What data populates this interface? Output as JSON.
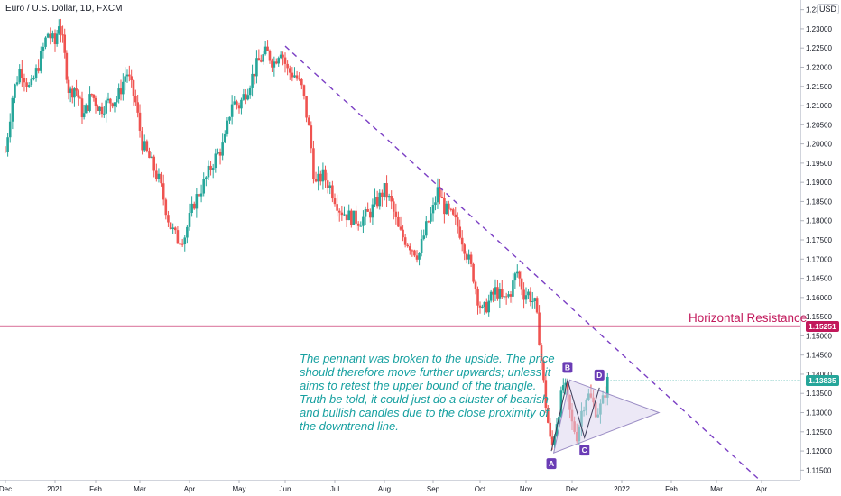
{
  "chart_data": {
    "type": "candlestick",
    "title": "Euro / U.S. Dollar, 1D, FXCM",
    "currency": "USD",
    "y_ticks": [
      "1.23500",
      "1.23000",
      "1.22500",
      "1.22000",
      "1.21500",
      "1.21000",
      "1.20500",
      "1.20000",
      "1.19500",
      "1.19000",
      "1.18500",
      "1.18000",
      "1.17500",
      "1.17000",
      "1.16500",
      "1.16000",
      "1.15500",
      "1.15000",
      "1.14500",
      "1.14000",
      "1.13500",
      "1.13000",
      "1.12500",
      "1.12000",
      "1.11500"
    ],
    "y_tick_values": [
      1.235,
      1.23,
      1.225,
      1.22,
      1.215,
      1.21,
      1.205,
      1.2,
      1.195,
      1.19,
      1.185,
      1.18,
      1.175,
      1.17,
      1.165,
      1.16,
      1.155,
      1.15,
      1.145,
      1.14,
      1.135,
      1.13,
      1.125,
      1.12,
      1.115
    ],
    "ylim": [
      1.1125,
      1.2375
    ],
    "x_ticks": [
      "Dec",
      "2021",
      "Feb",
      "Mar",
      "Apr",
      "May",
      "Jun",
      "Jul",
      "Aug",
      "Sep",
      "Oct",
      "Nov",
      "Dec",
      "2022",
      "Feb",
      "Mar",
      "Apr"
    ],
    "x_tick_months": [
      0,
      1,
      2,
      3,
      4,
      5,
      6,
      7,
      8,
      9,
      10,
      11,
      12,
      13,
      14,
      15,
      16
    ],
    "price_path": [
      [
        0.0,
        1.198
      ],
      [
        0.15,
        1.213
      ],
      [
        0.3,
        1.22
      ],
      [
        0.5,
        1.214
      ],
      [
        0.7,
        1.222
      ],
      [
        0.85,
        1.229
      ],
      [
        1.0,
        1.226
      ],
      [
        1.1,
        1.232
      ],
      [
        1.2,
        1.226
      ],
      [
        1.35,
        1.213
      ],
      [
        1.5,
        1.215
      ],
      [
        1.7,
        1.207
      ],
      [
        1.9,
        1.213
      ],
      [
        2.1,
        1.209
      ],
      [
        2.3,
        1.211
      ],
      [
        2.5,
        1.212
      ],
      [
        2.7,
        1.219
      ],
      [
        2.9,
        1.211
      ],
      [
        3.05,
        1.2
      ],
      [
        3.2,
        1.196
      ],
      [
        3.4,
        1.19
      ],
      [
        3.6,
        1.179
      ],
      [
        3.75,
        1.175
      ],
      [
        3.9,
        1.176
      ],
      [
        4.1,
        1.185
      ],
      [
        4.3,
        1.19
      ],
      [
        4.5,
        1.196
      ],
      [
        4.7,
        1.2
      ],
      [
        4.85,
        1.211
      ],
      [
        5.0,
        1.21
      ],
      [
        5.2,
        1.215
      ],
      [
        5.4,
        1.221
      ],
      [
        5.6,
        1.224
      ],
      [
        5.75,
        1.221
      ],
      [
        5.9,
        1.225
      ],
      [
        6.05,
        1.219
      ],
      [
        6.2,
        1.218
      ],
      [
        6.35,
        1.214
      ],
      [
        6.5,
        1.202
      ],
      [
        6.6,
        1.189
      ],
      [
        6.75,
        1.192
      ],
      [
        6.9,
        1.189
      ],
      [
        7.1,
        1.183
      ],
      [
        7.3,
        1.181
      ],
      [
        7.5,
        1.18
      ],
      [
        7.7,
        1.182
      ],
      [
        7.85,
        1.185
      ],
      [
        8.0,
        1.188
      ],
      [
        8.15,
        1.184
      ],
      [
        8.3,
        1.177
      ],
      [
        8.5,
        1.174
      ],
      [
        8.7,
        1.171
      ],
      [
        8.85,
        1.178
      ],
      [
        9.0,
        1.183
      ],
      [
        9.1,
        1.188
      ],
      [
        9.25,
        1.183
      ],
      [
        9.4,
        1.181
      ],
      [
        9.55,
        1.178
      ],
      [
        9.7,
        1.172
      ],
      [
        9.85,
        1.166
      ],
      [
        9.95,
        1.16
      ],
      [
        10.05,
        1.156
      ],
      [
        10.2,
        1.159
      ],
      [
        10.35,
        1.162
      ],
      [
        10.5,
        1.159
      ],
      [
        10.65,
        1.161
      ],
      [
        10.8,
        1.167
      ],
      [
        10.95,
        1.161
      ],
      [
        11.05,
        1.161
      ],
      [
        11.2,
        1.158
      ],
      [
        11.3,
        1.148
      ],
      [
        11.4,
        1.135
      ],
      [
        11.5,
        1.125
      ],
      [
        11.55,
        1.12
      ],
      [
        11.65,
        1.127
      ],
      [
        11.75,
        1.133
      ],
      [
        11.82,
        1.138
      ],
      [
        11.92,
        1.132
      ],
      [
        12.0,
        1.127
      ],
      [
        12.1,
        1.124
      ],
      [
        12.2,
        1.131
      ],
      [
        12.3,
        1.135
      ],
      [
        12.4,
        1.133
      ],
      [
        12.5,
        1.13
      ],
      [
        12.6,
        1.132
      ],
      [
        12.72,
        1.1383
      ]
    ],
    "last_price": "1.13835",
    "horizontal_resistance": 1.15251,
    "horizontal_resistance_label": "1.15251",
    "downtrend_line": {
      "start": [
        6.0,
        1.2255
      ],
      "end": [
        15.95,
        1.1125
      ]
    },
    "pennant": {
      "upper_start": [
        11.95,
        1.1385
      ],
      "lower_start": [
        11.6,
        1.1195
      ],
      "apex": [
        13.75,
        1.13
      ]
    },
    "pattern_points": [
      {
        "label": "A",
        "x": 11.55,
        "y": 1.12
      },
      {
        "label": "B",
        "x": 11.9,
        "y": 1.1385
      },
      {
        "label": "C",
        "x": 12.25,
        "y": 1.1235
      },
      {
        "label": "D",
        "x": 12.55,
        "y": 1.1365
      }
    ]
  },
  "annotations": {
    "resistance_text": "Horizontal Resistance",
    "note": "The pennant was broken to the upside. The price should therefore move further upwards; unless it aims to retest the upper bound of the triangle. Truth be told, it could just do a cluster of bearish and bullish candles due to the close proximity of the downtrend line."
  },
  "colors": {
    "up": "#26a69a",
    "down": "#ef5350",
    "trend": "#7b3fc4",
    "resistance": "#c2185b",
    "pennant_fill": "#ddd6ee",
    "pennant_line": "#9a8cc4"
  }
}
